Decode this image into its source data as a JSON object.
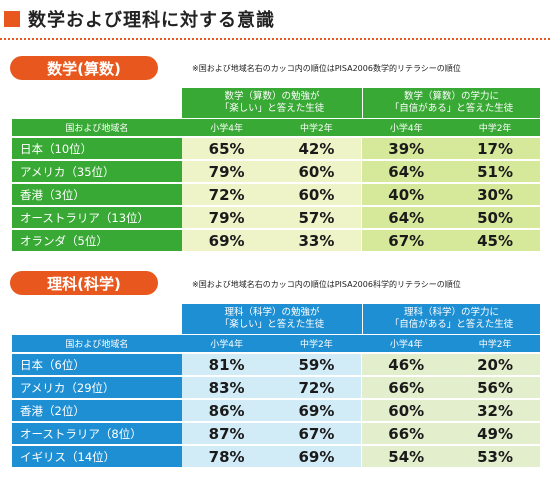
{
  "header": {
    "title": "数学および理科に対する意識"
  },
  "sections": [
    {
      "name": "数学(算数)",
      "note": "※国および地域名右のカッコ内の順位はPISA2006数学的リテラシーの順位",
      "group1": {
        "line1": "数学（算数）の勉強が",
        "line2": "「楽しい」と答えた生徒"
      },
      "group2": {
        "line1": "数学（算数）の学力に",
        "line2": "「自信がある」と答えた生徒"
      },
      "col_label": "国および地域名",
      "sub": [
        "小学4年",
        "中学2年",
        "小学4年",
        "中学2年"
      ],
      "rows": [
        {
          "label": "日本（10位）",
          "v": [
            "65%",
            "42%",
            "39%",
            "17%"
          ]
        },
        {
          "label": "アメリカ（35位）",
          "v": [
            "79%",
            "60%",
            "64%",
            "51%"
          ]
        },
        {
          "label": "香港（3位）",
          "v": [
            "72%",
            "60%",
            "40%",
            "30%"
          ]
        },
        {
          "label": "オーストラリア（13位）",
          "v": [
            "79%",
            "57%",
            "64%",
            "50%"
          ]
        },
        {
          "label": "オランダ（5位）",
          "v": [
            "69%",
            "33%",
            "67%",
            "45%"
          ]
        }
      ]
    },
    {
      "name": "理科(科学)",
      "note": "※国および地域名右のカッコ内の順位はPISA2006科学的リテラシーの順位",
      "group1": {
        "line1": "理科（科学）の勉強が",
        "line2": "「楽しい」と答えた生徒"
      },
      "group2": {
        "line1": "理科（科学）の学力に",
        "line2": "「自信がある」と答えた生徒"
      },
      "col_label": "国および地域名",
      "sub": [
        "小学4年",
        "中学2年",
        "小学4年",
        "中学2年"
      ],
      "rows": [
        {
          "label": "日本（6位）",
          "v": [
            "81%",
            "59%",
            "46%",
            "20%"
          ]
        },
        {
          "label": "アメリカ（29位）",
          "v": [
            "83%",
            "72%",
            "66%",
            "56%"
          ]
        },
        {
          "label": "香港（2位）",
          "v": [
            "86%",
            "69%",
            "60%",
            "32%"
          ]
        },
        {
          "label": "オーストラリア（8位）",
          "v": [
            "87%",
            "67%",
            "66%",
            "49%"
          ]
        },
        {
          "label": "イギリス（14位）",
          "v": [
            "78%",
            "69%",
            "54%",
            "53%"
          ]
        }
      ]
    }
  ],
  "colors": {
    "accent": "#e8581e",
    "math": "#39a935",
    "science": "#1f8fd3"
  }
}
